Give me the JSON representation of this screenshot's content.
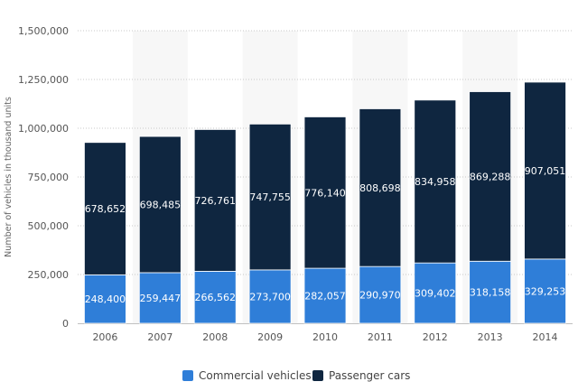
{
  "chart_data": {
    "type": "bar",
    "stacked": true,
    "title": "",
    "xlabel": "",
    "ylabel": "Number of vehicles in thousand units",
    "ylim": [
      0,
      1500000
    ],
    "yticks": [
      0,
      250000,
      500000,
      750000,
      1000000,
      1250000,
      1500000
    ],
    "ytick_labels": [
      "0",
      "250,000",
      "500,000",
      "750,000",
      "1,000,000",
      "1,250,000",
      "1,500,000"
    ],
    "grid": true,
    "legend_position": "bottom",
    "categories": [
      "2006",
      "2007",
      "2008",
      "2009",
      "2010",
      "2011",
      "2012",
      "2013",
      "2014"
    ],
    "series": [
      {
        "name": "Commercial vehicles",
        "color": "#2f7ed8",
        "values": [
          248400,
          259447,
          266562,
          273700,
          282057,
          290970,
          309402,
          318158,
          329253
        ],
        "labels": [
          "248,400",
          "259,447",
          "266,562",
          "273,700",
          "282,057",
          "290,970",
          "309,402",
          "318,158",
          "329,253"
        ]
      },
      {
        "name": "Passenger cars",
        "color": "#0f2640",
        "values": [
          678652,
          698485,
          726761,
          747755,
          776140,
          808698,
          834958,
          869288,
          907051
        ],
        "labels": [
          "678,652",
          "698,485",
          "726,761",
          "747,755",
          "776,140",
          "808,698",
          "834,958",
          "869,288",
          "907,051"
        ]
      }
    ]
  }
}
